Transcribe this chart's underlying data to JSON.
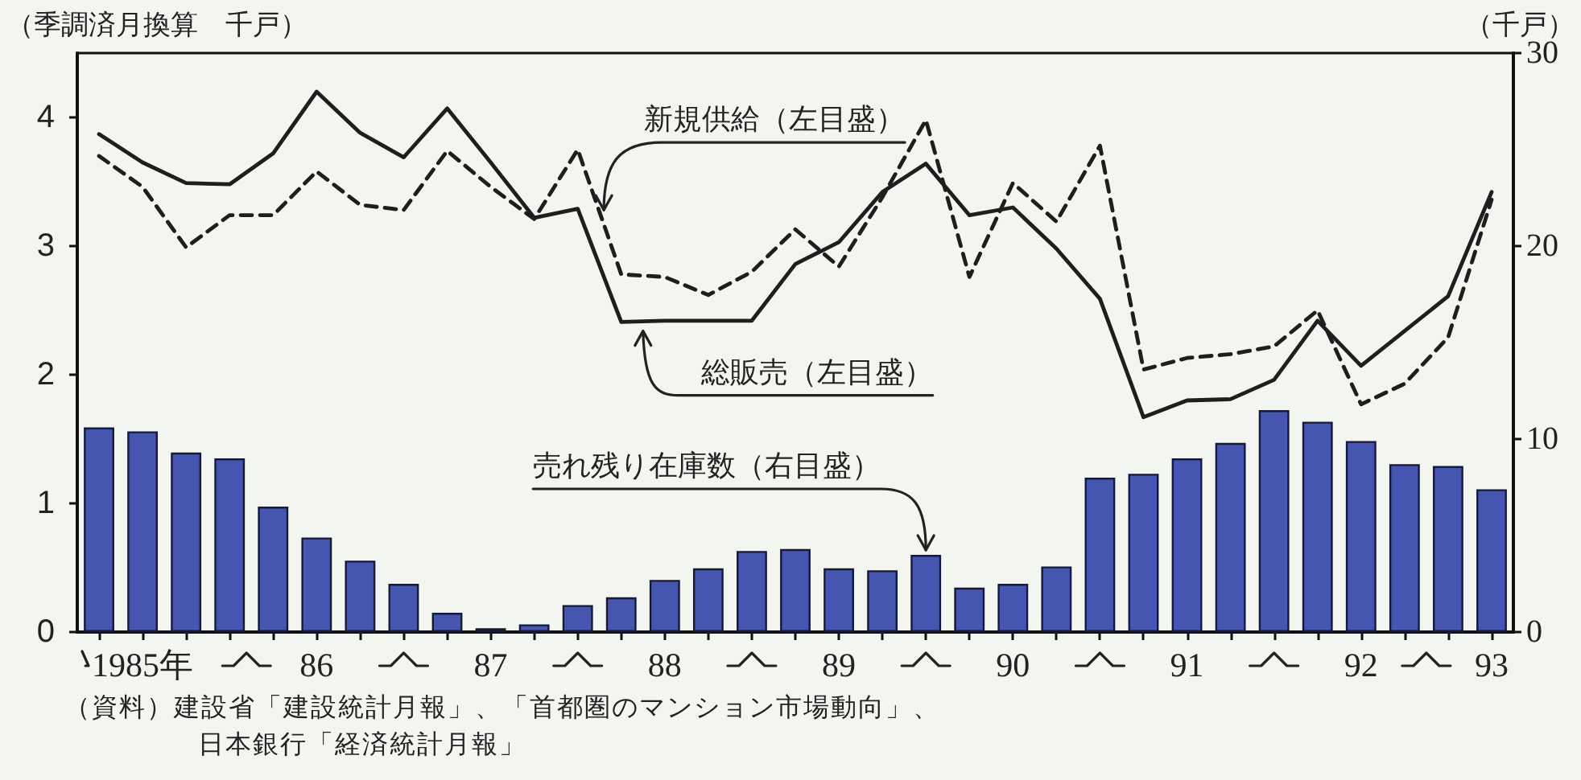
{
  "chart_data": {
    "type": "bar",
    "ylabel": "（季調済月換算　千戸）",
    "y2label": "（千戸）",
    "categories": [
      null,
      "1985年",
      null,
      null,
      null,
      "86",
      null,
      null,
      null,
      "87",
      null,
      null,
      null,
      "88",
      null,
      null,
      null,
      "89",
      null,
      null,
      null,
      "90",
      null,
      null,
      null,
      "91",
      null,
      null,
      null,
      "92",
      null,
      null,
      "93"
    ],
    "series": [
      {
        "name": "売れ残り在庫数（右目盛）",
        "axis": "y2",
        "color": "#4656b0",
        "values": [
          10.6,
          10.4,
          9.3,
          9.0,
          6.5,
          4.9,
          3.7,
          2.5,
          1.0,
          0.2,
          0.4,
          1.4,
          1.8,
          2.7,
          3.3,
          4.2,
          4.3,
          3.3,
          3.2,
          4.0,
          2.3,
          2.5,
          3.4,
          8.0,
          8.2,
          9.0,
          9.8,
          11.5,
          10.9,
          9.9,
          8.7,
          8.6,
          7.4
        ]
      },
      {
        "name": "総販売（左目盛）",
        "type": "line",
        "line_style": "solid",
        "color": "#1e1e1e",
        "values": [
          3.87,
          3.65,
          3.49,
          3.48,
          3.72,
          4.2,
          3.88,
          3.69,
          4.07,
          3.65,
          3.22,
          3.29,
          2.41,
          2.42,
          2.42,
          2.42,
          2.86,
          3.03,
          3.42,
          3.64,
          3.24,
          3.3,
          2.98,
          2.59,
          1.67,
          1.8,
          1.81,
          1.96,
          2.42,
          2.07,
          2.34,
          2.61,
          3.42
        ]
      },
      {
        "name": "新規供給（左目盛）",
        "type": "line",
        "line_style": "dashed",
        "color": "#1e1e1e",
        "values": [
          3.7,
          3.46,
          2.99,
          3.24,
          3.24,
          3.58,
          3.32,
          3.28,
          3.74,
          3.46,
          3.21,
          3.75,
          2.78,
          2.76,
          2.62,
          2.8,
          3.13,
          2.84,
          3.38,
          3.98,
          2.76,
          3.49,
          3.19,
          3.78,
          2.04,
          2.13,
          2.16,
          2.22,
          2.5,
          1.77,
          1.93,
          2.29,
          3.36
        ]
      }
    ],
    "ylim": [
      0,
      4.5
    ],
    "yticks": [
      0,
      1,
      2,
      3,
      4
    ],
    "y2lim": [
      0,
      30
    ],
    "y2ticks": [
      0,
      10,
      20,
      30
    ],
    "marker": "none",
    "annotations": [
      "（資料）建設省「建設統計月報」、「首都圏のマンション市場動向」、",
      "日本銀行「経済統計月報」"
    ]
  }
}
